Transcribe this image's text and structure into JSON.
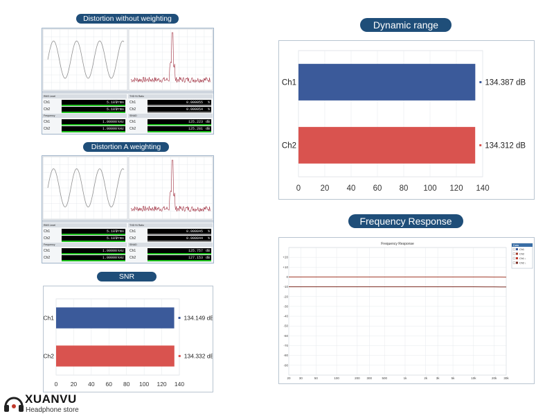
{
  "titles": {
    "dist_no_weight": "Distortion without weighting",
    "dist_a_weight": "Distortion A weighting",
    "snr": "SNR",
    "dynamic_range": "Dynamic range",
    "freq_response": "Frequency Response"
  },
  "brand": {
    "name": "XUANVU",
    "tagline": "Headphone store"
  },
  "distortion_panels": [
    {
      "left_meters": {
        "group1": {
          "title": "RMS Level",
          "ch1": {
            "label": "Ch1",
            "value": "5.187",
            "unit": "Vrms"
          },
          "ch2": {
            "label": "Ch2",
            "value": "5.187",
            "unit": "Vrms"
          }
        },
        "group2": {
          "title": "Frequency",
          "ch1": {
            "label": "Ch1",
            "value": "1.00000",
            "unit": "kHz"
          },
          "ch2": {
            "label": "Ch2",
            "value": "1.00000",
            "unit": "kHz"
          }
        }
      },
      "right_meters": {
        "group1": {
          "title": "THD+N Ratio",
          "ch1": {
            "label": "Ch1",
            "value": "0.000055",
            "unit": "%"
          },
          "ch2": {
            "label": "Ch2",
            "value": "0.000054",
            "unit": "%"
          }
        },
        "group2": {
          "title": "SINAD",
          "ch1": {
            "label": "Ch1",
            "value": "125.223",
            "unit": "dB"
          },
          "ch2": {
            "label": "Ch2",
            "value": "125.281",
            "unit": "dB"
          }
        }
      }
    },
    {
      "left_meters": {
        "group1": {
          "title": "RMS Level",
          "ch1": {
            "label": "Ch1",
            "value": "5.187",
            "unit": "Vrms"
          },
          "ch2": {
            "label": "Ch2",
            "value": "5.187",
            "unit": "Vrms"
          }
        },
        "group2": {
          "title": "Frequency",
          "ch1": {
            "label": "Ch1",
            "value": "1.00000",
            "unit": "kHz"
          },
          "ch2": {
            "label": "Ch2",
            "value": "1.00000",
            "unit": "kHz"
          }
        }
      },
      "right_meters": {
        "group1": {
          "title": "THD+N Ratio",
          "ch1": {
            "label": "Ch1",
            "value": "0.000045",
            "unit": "%"
          },
          "ch2": {
            "label": "Ch2",
            "value": "0.000044",
            "unit": "%"
          }
        },
        "group2": {
          "title": "SINAD",
          "ch1": {
            "label": "Ch1",
            "value": "125.757",
            "unit": "dB"
          },
          "ch2": {
            "label": "Ch2",
            "value": "127.153",
            "unit": "dB"
          }
        }
      }
    }
  ],
  "chart_data": [
    {
      "type": "bar",
      "orientation": "horizontal",
      "title": "SNR",
      "categories": [
        "Ch1",
        "Ch2"
      ],
      "values": [
        134.149,
        134.332
      ],
      "value_labels": [
        "134.149 dB",
        "134.332 dB"
      ],
      "colors": [
        "#3b5a9a",
        "#d9534f"
      ],
      "xlim": [
        0,
        140
      ],
      "xticks": [
        "0",
        "20",
        "40",
        "60",
        "80",
        "100",
        "120",
        "140"
      ]
    },
    {
      "type": "bar",
      "orientation": "horizontal",
      "title": "Dynamic range",
      "categories": [
        "Ch1",
        "Ch2"
      ],
      "values": [
        134.387,
        134.312
      ],
      "value_labels": [
        "134.387 dB",
        "134.312 dB"
      ],
      "colors": [
        "#3b5a9a",
        "#d9534f"
      ],
      "xlim": [
        0,
        140
      ],
      "xticks": [
        "0",
        "20",
        "40",
        "60",
        "80",
        "100",
        "120",
        "140"
      ]
    },
    {
      "type": "line",
      "title": "Frequency Response",
      "x_scale": "log",
      "x": [
        20,
        50,
        100,
        200,
        500,
        1000,
        2000,
        5000,
        10000,
        15000,
        20000,
        25000,
        30000
      ],
      "series": [
        {
          "name": "Ch1",
          "values": [
            0,
            0,
            0,
            0,
            0,
            0,
            0,
            0,
            0,
            -0.05,
            -0.1,
            -0.15,
            -0.2
          ],
          "color": "#a23b2a"
        },
        {
          "name": "Ch2",
          "values": [
            -10,
            -10,
            -10,
            -10,
            -10,
            -10,
            -10,
            -10,
            -10,
            -10.05,
            -10.1,
            -10.15,
            -10.2
          ],
          "color": "#7a2a20"
        }
      ],
      "xlim": [
        20,
        30000
      ],
      "ylim": [
        -100,
        30
      ],
      "yticks": [
        "+20",
        "+10",
        "0",
        "-10",
        "-20",
        "-30",
        "-40",
        "-50",
        "-60",
        "-70",
        "-80",
        "-90"
      ],
      "xticks": [
        "20",
        "30",
        "50",
        "100",
        "200",
        "300",
        "500",
        "1k",
        "2k",
        "3k",
        "5k",
        "10k",
        "20k",
        "30k"
      ],
      "legend": {
        "title": "Data",
        "items": [
          "Ch1",
          "Ch2",
          "Ch1 ↓",
          "Ch2 ↓"
        ]
      }
    }
  ]
}
